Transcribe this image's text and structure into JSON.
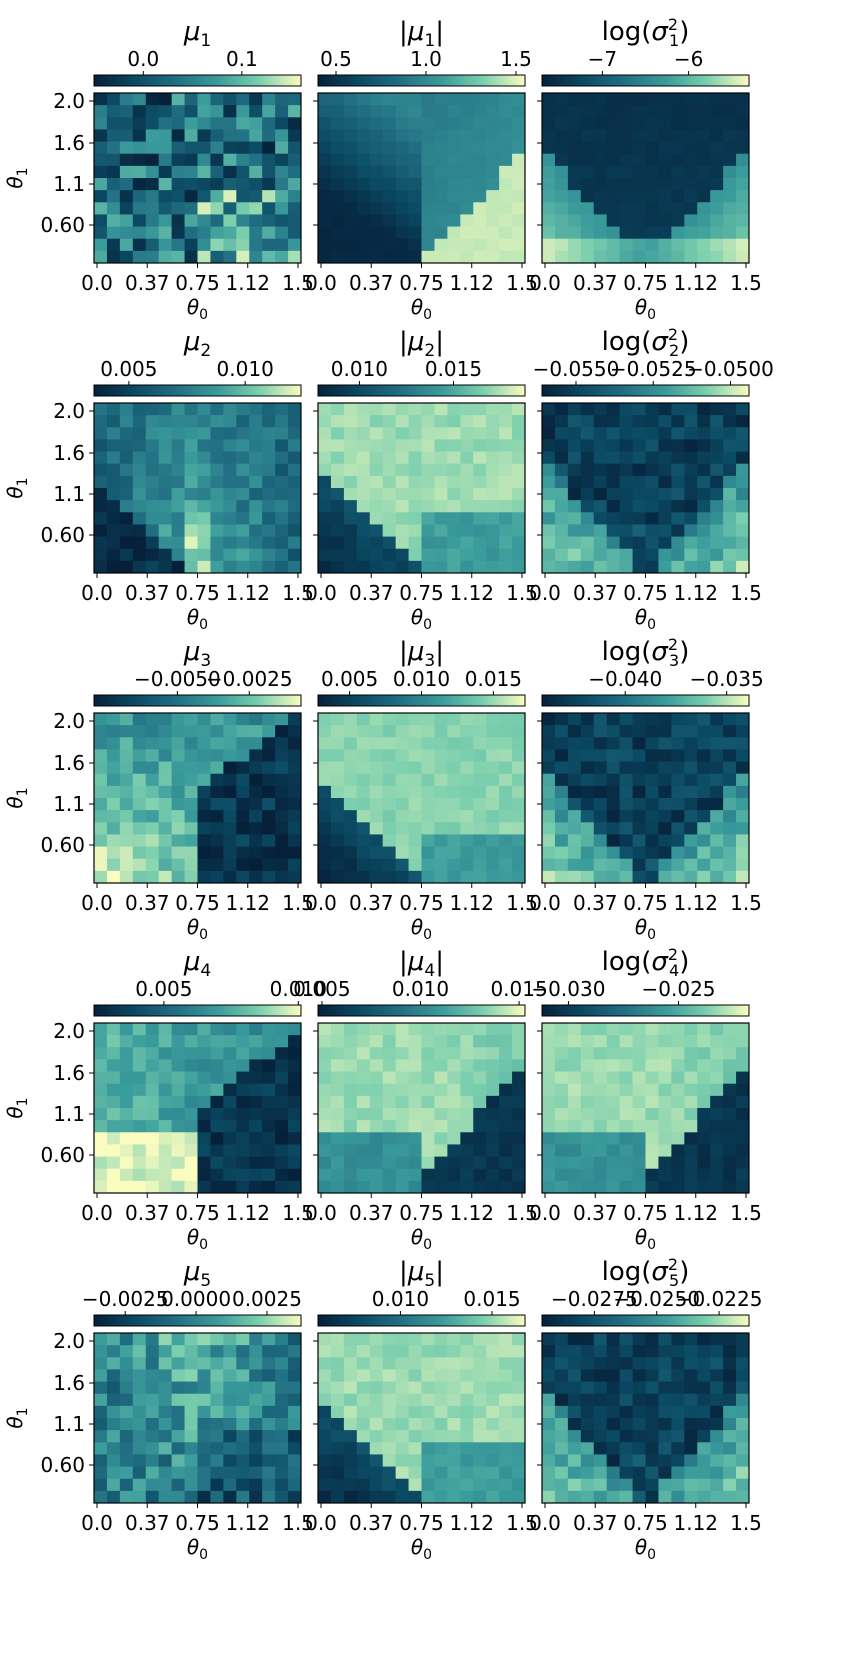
{
  "figure": {
    "description_type": "grid of heatmaps",
    "x_axis_label": "θ0",
    "y_axis_label": "θ1",
    "x_ticks": [
      "0.0",
      "0.37",
      "0.75",
      "1.12",
      "1.5"
    ],
    "y_ticks": [
      "2.0",
      "1.6",
      "1.1",
      "0.60"
    ]
  },
  "colormap": {
    "name": "YlGnBu-like",
    "stops": [
      "#06203a",
      "#0b4a63",
      "#226f83",
      "#3b9c9c",
      "#7ccfae",
      "#fbfcbf"
    ]
  },
  "chart_data": [
    {
      "type": "heatmap",
      "title_base": "μ",
      "title_sub": "1",
      "title_kind": "mu",
      "cbar_range": [
        -0.05,
        0.16
      ],
      "cbar_ticks": [
        {
          "v": 0.0,
          "label": "0.0"
        },
        {
          "v": 0.1,
          "label": "0.1"
        }
      ],
      "pattern": "noise_bright_right",
      "seed": 11,
      "xlabel": "θ0",
      "ylabel": "θ1",
      "xrange": [
        0,
        1.5
      ],
      "yrange": [
        0.2,
        2.1
      ]
    },
    {
      "type": "heatmap",
      "title_base": "|μ",
      "title_sub": "1",
      "title_kind": "absmu",
      "cbar_range": [
        0.4,
        1.55
      ],
      "cbar_ticks": [
        {
          "v": 0.5,
          "label": "0.5"
        },
        {
          "v": 1.0,
          "label": "1.0"
        },
        {
          "v": 1.5,
          "label": "1.5"
        }
      ],
      "pattern": "wedge_right_bright",
      "seed": 12,
      "xlabel": "θ0",
      "ylabel": "θ1",
      "xrange": [
        0,
        1.5
      ],
      "yrange": [
        0.2,
        2.1
      ]
    },
    {
      "type": "heatmap",
      "title_base": "log(σ",
      "title_sub": "1",
      "title_kind": "logsigma",
      "cbar_range": [
        -7.7,
        -5.3
      ],
      "cbar_ticks": [
        {
          "v": -7,
          "label": "−7"
        },
        {
          "v": -6,
          "label": "−6"
        }
      ],
      "pattern": "v_dark_top",
      "seed": 13,
      "xlabel": "θ0",
      "ylabel": "θ1",
      "xrange": [
        0,
        1.5
      ],
      "yrange": [
        0.2,
        2.1
      ]
    },
    {
      "type": "heatmap",
      "title_base": "μ",
      "title_sub": "2",
      "title_kind": "mu",
      "cbar_range": [
        0.0035,
        0.0124
      ],
      "cbar_ticks": [
        {
          "v": 0.005,
          "label": "0.005"
        },
        {
          "v": 0.01,
          "label": "0.010"
        }
      ],
      "pattern": "v_bright_center",
      "seed": 21,
      "xlabel": "θ0",
      "ylabel": "θ1",
      "xrange": [
        0,
        1.5
      ],
      "yrange": [
        0.2,
        2.1
      ]
    },
    {
      "type": "heatmap",
      "title_base": "|μ",
      "title_sub": "2",
      "title_kind": "absmu",
      "cbar_range": [
        0.0078,
        0.0188
      ],
      "cbar_ticks": [
        {
          "v": 0.01,
          "label": "0.010"
        },
        {
          "v": 0.015,
          "label": "0.015"
        }
      ],
      "pattern": "dark_lowerleft",
      "seed": 22,
      "xlabel": "θ0",
      "ylabel": "θ1",
      "xrange": [
        0,
        1.5
      ],
      "yrange": [
        0.2,
        2.1
      ]
    },
    {
      "type": "heatmap",
      "title_base": "log(σ",
      "title_sub": "2",
      "title_kind": "logsigma",
      "cbar_range": [
        -0.0561,
        -0.0494
      ],
      "cbar_ticks": [
        {
          "v": -0.055,
          "label": "−0.0550"
        },
        {
          "v": -0.0525,
          "label": "−0.0525"
        },
        {
          "v": -0.05,
          "label": "−0.0500"
        }
      ],
      "pattern": "v_dark_top_noisy",
      "seed": 23,
      "xlabel": "θ0",
      "ylabel": "θ1",
      "xrange": [
        0,
        1.5
      ],
      "yrange": [
        0.2,
        2.1
      ]
    },
    {
      "type": "heatmap",
      "title_base": "μ",
      "title_sub": "3",
      "title_kind": "mu",
      "cbar_range": [
        -0.0079,
        -0.0007
      ],
      "cbar_ticks": [
        {
          "v": -0.005,
          "label": "−0.0050"
        },
        {
          "v": -0.0025,
          "label": "−0.0025"
        }
      ],
      "pattern": "dark_lowerright",
      "seed": 31,
      "xlabel": "θ0",
      "ylabel": "θ1",
      "xrange": [
        0,
        1.5
      ],
      "yrange": [
        0.2,
        2.1
      ]
    },
    {
      "type": "heatmap",
      "title_base": "|μ",
      "title_sub": "3",
      "title_kind": "absmu",
      "cbar_range": [
        0.0028,
        0.0172
      ],
      "cbar_ticks": [
        {
          "v": 0.005,
          "label": "0.005"
        },
        {
          "v": 0.01,
          "label": "0.010"
        },
        {
          "v": 0.015,
          "label": "0.015"
        }
      ],
      "pattern": "dark_lowerleft_mid",
      "seed": 32,
      "xlabel": "θ0",
      "ylabel": "θ1",
      "xrange": [
        0,
        1.5
      ],
      "yrange": [
        0.2,
        2.1
      ]
    },
    {
      "type": "heatmap",
      "title_base": "log(σ",
      "title_sub": "3",
      "title_kind": "logsigma",
      "cbar_range": [
        -0.0441,
        -0.0339
      ],
      "cbar_ticks": [
        {
          "v": -0.04,
          "label": "−0.040"
        },
        {
          "v": -0.035,
          "label": "−0.035"
        }
      ],
      "pattern": "v_dark_top_noisy",
      "seed": 33,
      "xlabel": "θ0",
      "ylabel": "θ1",
      "xrange": [
        0,
        1.5
      ],
      "yrange": [
        0.2,
        2.1
      ]
    },
    {
      "type": "heatmap",
      "title_base": "μ",
      "title_sub": "4",
      "title_kind": "mu",
      "cbar_range": [
        0.0024,
        0.0101
      ],
      "cbar_ticks": [
        {
          "v": 0.005,
          "label": "0.005"
        },
        {
          "v": 0.01,
          "label": "0.010"
        }
      ],
      "pattern": "bright_left_dark_right",
      "seed": 41,
      "xlabel": "θ0",
      "ylabel": "θ1",
      "xrange": [
        0,
        1.5
      ],
      "yrange": [
        0.2,
        2.1
      ]
    },
    {
      "type": "heatmap",
      "title_base": "|μ",
      "title_sub": "4",
      "title_kind": "absmu",
      "cbar_range": [
        0.0048,
        0.0153
      ],
      "cbar_ticks": [
        {
          "v": 0.005,
          "label": "0.005"
        },
        {
          "v": 0.01,
          "label": "0.010"
        },
        {
          "v": 0.015,
          "label": "0.015"
        }
      ],
      "pattern": "wedge_right_dark",
      "seed": 42,
      "xlabel": "θ0",
      "ylabel": "θ1",
      "xrange": [
        0,
        1.5
      ],
      "yrange": [
        0.2,
        2.1
      ]
    },
    {
      "type": "heatmap",
      "title_base": "log(σ",
      "title_sub": "4",
      "title_kind": "logsigma",
      "cbar_range": [
        -0.0312,
        -0.0218
      ],
      "cbar_ticks": [
        {
          "v": -0.03,
          "label": "−0.030"
        },
        {
          "v": -0.025,
          "label": "−0.025"
        }
      ],
      "pattern": "wedge_right_dark",
      "seed": 43,
      "xlabel": "θ0",
      "ylabel": "θ1",
      "xrange": [
        0,
        1.5
      ],
      "yrange": [
        0.2,
        2.1
      ]
    },
    {
      "type": "heatmap",
      "title_base": "μ",
      "title_sub": "5",
      "title_kind": "mu",
      "cbar_range": [
        -0.0036,
        0.0037
      ],
      "cbar_ticks": [
        {
          "v": -0.0025,
          "label": "−0.0025"
        },
        {
          "v": 0.0,
          "label": "0.0000"
        },
        {
          "v": 0.0025,
          "label": "0.0025"
        }
      ],
      "pattern": "v_bright_center_noisy",
      "seed": 51,
      "xlabel": "θ0",
      "ylabel": "θ1",
      "xrange": [
        0,
        1.5
      ],
      "yrange": [
        0.2,
        2.1
      ]
    },
    {
      "type": "heatmap",
      "title_base": "|μ",
      "title_sub": "5",
      "title_kind": "absmu",
      "cbar_range": [
        0.0055,
        0.0168
      ],
      "cbar_ticks": [
        {
          "v": 0.01,
          "label": "0.010"
        },
        {
          "v": 0.015,
          "label": "0.015"
        }
      ],
      "pattern": "dark_lowerleft",
      "seed": 52,
      "xlabel": "θ0",
      "ylabel": "θ1",
      "xrange": [
        0,
        1.5
      ],
      "yrange": [
        0.2,
        2.1
      ]
    },
    {
      "type": "heatmap",
      "title_base": "log(σ",
      "title_sub": "5",
      "title_kind": "logsigma",
      "cbar_range": [
        -0.0296,
        -0.0213
      ],
      "cbar_ticks": [
        {
          "v": -0.0275,
          "label": "−0.0275"
        },
        {
          "v": -0.025,
          "label": "−0.0250"
        },
        {
          "v": -0.0225,
          "label": "−0.0225"
        }
      ],
      "pattern": "v_dark_top_noisy",
      "seed": 53,
      "xlabel": "θ0",
      "ylabel": "θ1",
      "xrange": [
        0,
        1.5
      ],
      "yrange": [
        0.2,
        2.1
      ]
    }
  ]
}
